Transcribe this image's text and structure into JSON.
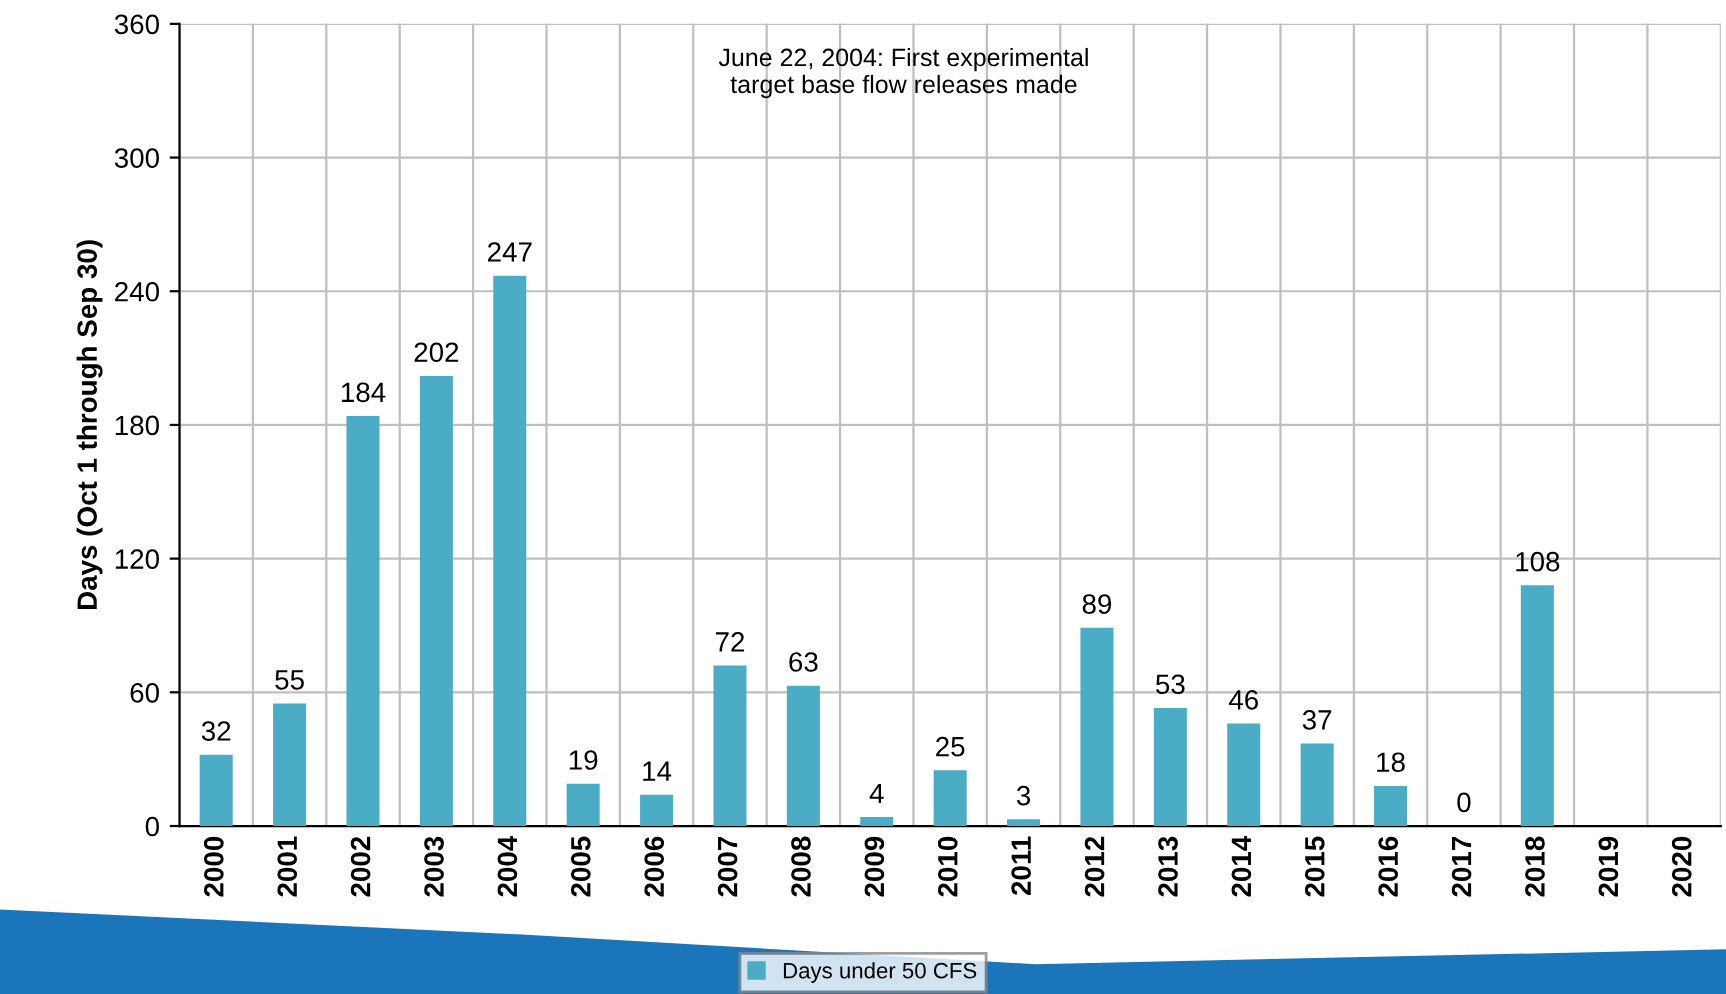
{
  "chart_data": {
    "type": "bar",
    "ylabel": "Days (Oct 1 through Sep 30)",
    "annotations": [
      "June 22, 2004: First experimental\ntarget base flow releases made"
    ],
    "categories": [
      "2000",
      "2001",
      "2002",
      "2003",
      "2004",
      "2005",
      "2006",
      "2007",
      "2008",
      "2009",
      "2010",
      "2011",
      "2012",
      "2013",
      "2014",
      "2015",
      "2016",
      "2017",
      "2018",
      "2019",
      "2020"
    ],
    "series": [
      {
        "name": "Days under 50 CFS",
        "color": "#4bacc6",
        "values": [
          32,
          55,
          184,
          202,
          247,
          19,
          14,
          72,
          63,
          4,
          25,
          3,
          89,
          53,
          46,
          37,
          18,
          0,
          108,
          null,
          null
        ]
      }
    ],
    "ylim": [
      0,
      360
    ],
    "yticks": [
      0,
      60,
      120,
      180,
      240,
      300,
      360
    ],
    "grid": true,
    "legend": "bottom",
    "data_labels": true
  }
}
